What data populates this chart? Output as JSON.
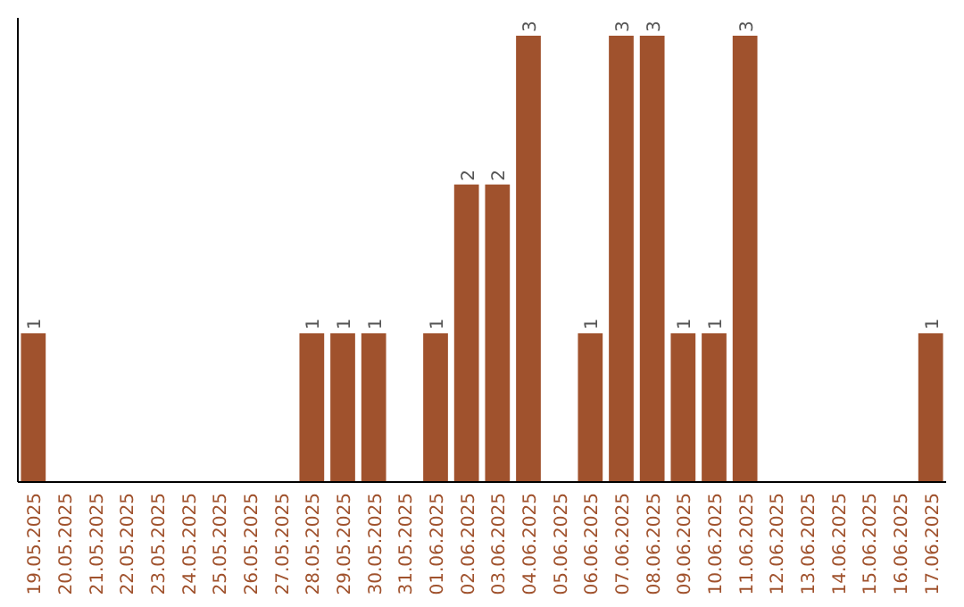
{
  "chart_data": {
    "type": "bar",
    "categories": [
      "19.05.2025",
      "20.05.2025",
      "21.05.2025",
      "22.05.2025",
      "23.05.2025",
      "24.05.2025",
      "25.05.2025",
      "26.05.2025",
      "27.05.2025",
      "28.05.2025",
      "29.05.2025",
      "30.05.2025",
      "31.05.2025",
      "01.06.2025",
      "02.06.2025",
      "03.06.2025",
      "04.06.2025",
      "05.06.2025",
      "06.06.2025",
      "07.06.2025",
      "08.06.2025",
      "09.06.2025",
      "10.06.2025",
      "11.06.2025",
      "12.06.2025",
      "13.06.2025",
      "14.06.2025",
      "15.06.2025",
      "16.06.2025",
      "17.06.2025"
    ],
    "values": [
      1,
      0,
      0,
      0,
      0,
      0,
      0,
      0,
      0,
      1,
      1,
      1,
      0,
      1,
      2,
      2,
      3,
      0,
      1,
      3,
      3,
      1,
      1,
      3,
      0,
      0,
      0,
      0,
      0,
      1
    ],
    "value_labels": [
      "1",
      null,
      null,
      null,
      null,
      null,
      null,
      null,
      null,
      "1",
      "1",
      "1",
      null,
      "1",
      "2",
      "2",
      "3",
      null,
      "1",
      "3",
      "3",
      "1",
      "1",
      "3",
      null,
      null,
      null,
      null,
      null,
      "1"
    ],
    "color": "#a0522d",
    "tick_labels": "x"
  }
}
